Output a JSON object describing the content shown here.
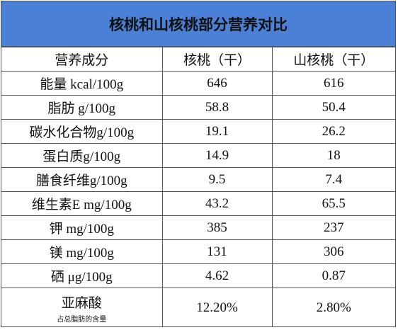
{
  "title": "核桃和山核桃部分营养对比",
  "table": {
    "header": [
      "营养成分",
      "核桃（干）",
      "山核桃（干）"
    ],
    "rows": [
      [
        "能量 kcal/100g",
        "646",
        "616"
      ],
      [
        "脂肪 g/100g",
        "58.8",
        "50.4"
      ],
      [
        "碳水化合物g/100g",
        "19.1",
        "26.2"
      ],
      [
        "蛋白质g/100g",
        "14.9",
        "18"
      ],
      [
        "膳食纤维g/100g",
        "9.5",
        "7.4"
      ],
      [
        "维生素E mg/100g",
        "43.2",
        "65.5"
      ],
      [
        "钾 mg/100g",
        "385",
        "237"
      ],
      [
        "镁 mg/100g",
        "131",
        "306"
      ],
      [
        "硒 μg/100g",
        "4.62",
        "0.87"
      ],
      [
        "亚麻酸",
        "12.20%",
        "2.80%"
      ]
    ],
    "note": "占总脂肪的含量"
  }
}
